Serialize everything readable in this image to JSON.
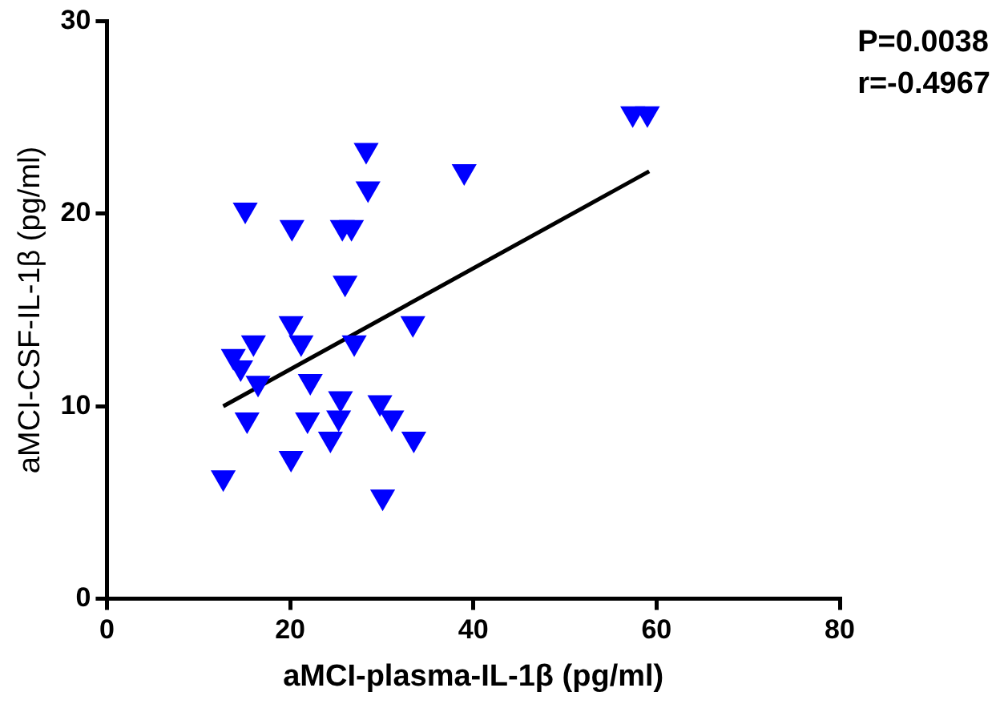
{
  "chart_data": {
    "type": "scatter",
    "xlabel": "aMCI-plasma-IL-1β (pg/ml)",
    "ylabel": "aMCI-CSF-IL-1β (pg/ml)",
    "annotations": [
      "P=0.0038",
      "r=-0.4967"
    ],
    "xlim": [
      0,
      80
    ],
    "xticks": [
      0,
      20,
      40,
      60,
      80
    ],
    "ylim": [
      0,
      30
    ],
    "yticks": [
      0,
      10,
      20,
      30
    ],
    "grid": false,
    "legend": false,
    "marker": "triangle",
    "series": [
      {
        "color": "#0000ff",
        "x": [
          12.7,
          13.8,
          14.6,
          15.1,
          15.3,
          16.0,
          16.5,
          20.2,
          20.1,
          20.1,
          21.2,
          22.2,
          21.9,
          24.4,
          25.5,
          25.3,
          26.0,
          25.7,
          26.7,
          27.0,
          28.3,
          28.5,
          29.8,
          30.1,
          31.1,
          33.4,
          33.5,
          39.0,
          57.4,
          59.0
        ],
        "values": [
          6.3,
          12.6,
          12.0,
          20.2,
          9.3,
          13.3,
          11.2,
          19.3,
          14.3,
          7.3,
          13.3,
          11.3,
          9.3,
          8.3,
          10.4,
          9.4,
          16.4,
          19.3,
          19.3,
          13.3,
          23.3,
          21.3,
          10.2,
          5.3,
          9.4,
          14.3,
          8.3,
          22.2,
          25.2,
          25.2
        ]
      },
      {
        "type": "line",
        "color": "#000000",
        "x": [
          12.7,
          59.2
        ],
        "values": [
          10.0,
          22.2
        ],
        "marker": "none"
      }
    ]
  }
}
